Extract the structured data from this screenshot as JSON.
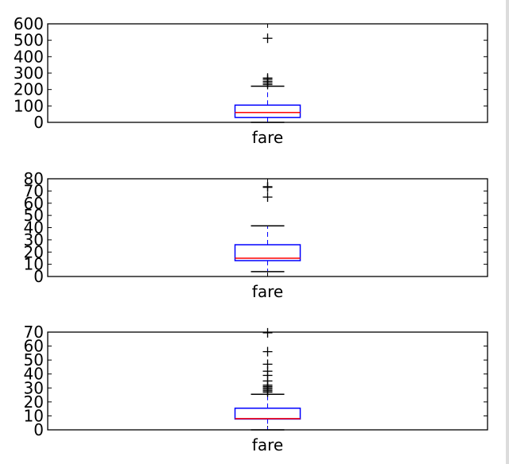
{
  "chart_data": [
    {
      "type": "boxplot",
      "xlabel": "fare",
      "ylim": [
        0,
        600
      ],
      "yticks": [
        0,
        100,
        200,
        300,
        400,
        500,
        600
      ],
      "box": {
        "q1": 30,
        "median": 60,
        "q3": 105,
        "whisker_low": 0,
        "whisker_high": 220
      },
      "outliers": [
        230,
        240,
        250,
        262,
        270,
        512
      ]
    },
    {
      "type": "boxplot",
      "xlabel": "fare",
      "ylim": [
        0,
        80
      ],
      "yticks": [
        0,
        10,
        20,
        30,
        40,
        50,
        60,
        70,
        80
      ],
      "box": {
        "q1": 13,
        "median": 15,
        "q3": 26,
        "whisker_low": 4,
        "whisker_high": 41.5
      },
      "outliers": [
        65,
        73,
        73.5
      ]
    },
    {
      "type": "boxplot",
      "xlabel": "fare",
      "ylim": [
        0,
        70
      ],
      "yticks": [
        0,
        10,
        20,
        30,
        40,
        50,
        60,
        70
      ],
      "box": {
        "q1": 7.75,
        "median": 8.05,
        "q3": 15.5,
        "whisker_low": 0,
        "whisker_high": 25.5
      },
      "outliers": [
        27,
        28,
        29,
        30,
        31,
        32,
        35,
        39,
        42,
        47,
        56,
        69.5
      ]
    }
  ],
  "colors": {
    "box": "#0000ff",
    "median": "#ff0000",
    "cap": "#000000",
    "flier": "#000000"
  }
}
